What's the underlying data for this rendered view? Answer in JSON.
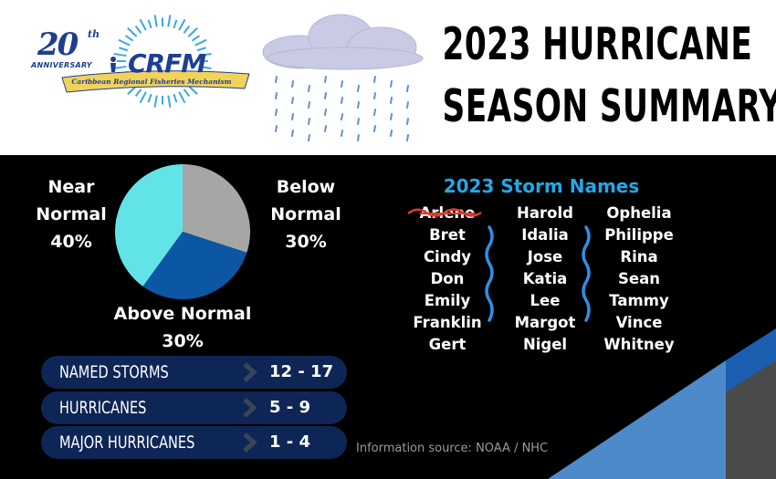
{
  "logo": {
    "anniversary_number": "20",
    "anniversary_suffix": "th",
    "anniversary_word": "ANNIVERSARY",
    "org_short": "CRFM",
    "org_full": "Caribbean Regional Fisheries Mechanism",
    "colors": {
      "primary": "#1f3e8f",
      "rays": "#3aa8e4",
      "banner": "#f2d35a"
    }
  },
  "title": {
    "line1": "2023 HURRICANE",
    "line2": "SEASON SUMMARY"
  },
  "chart_data": {
    "type": "pie",
    "slices": [
      {
        "label": "Below Normal",
        "value": 30,
        "color": "#a6a6a6"
      },
      {
        "label": "Above Normal",
        "value": 30,
        "color": "#0b57a4"
      },
      {
        "label": "Near Normal",
        "value": 40,
        "color": "#62e3e8"
      }
    ],
    "labels_text": {
      "near": [
        "Near",
        "Normal",
        "40%"
      ],
      "below": [
        "Below",
        "Normal",
        "30%"
      ],
      "above": [
        "Above Normal",
        "30%"
      ]
    }
  },
  "storm_names": {
    "heading": "2023 Storm Names",
    "columns": [
      [
        "Arlene",
        "Bret",
        "Cindy",
        "Don",
        "Emily",
        "Franklin",
        "Gert"
      ],
      [
        "Harold",
        "Idalia",
        "Jose",
        "Katia",
        "Lee",
        "Margot",
        "Nigel"
      ],
      [
        "Ophelia",
        "Philippe",
        "Rina",
        "Sean",
        "Tammy",
        "Vince",
        "Whitney"
      ]
    ],
    "struck_name": "Arlene",
    "strike_color": "#e03a2f",
    "separator_color": "#2f8fe5"
  },
  "stats": [
    {
      "label": "NAMED STORMS",
      "value": "12 - 17"
    },
    {
      "label": "HURRICANES",
      "value": "5 - 9"
    },
    {
      "label": "MAJOR HURRICANES",
      "value": "1 - 4"
    }
  ],
  "source": "Information source: NOAA / NHC",
  "colors": {
    "stat_pill": "#0e2656",
    "deco_light": "#4d8ac9",
    "deco_dark": "#1a5fb0",
    "deco_gray": "#4a4a4a"
  }
}
